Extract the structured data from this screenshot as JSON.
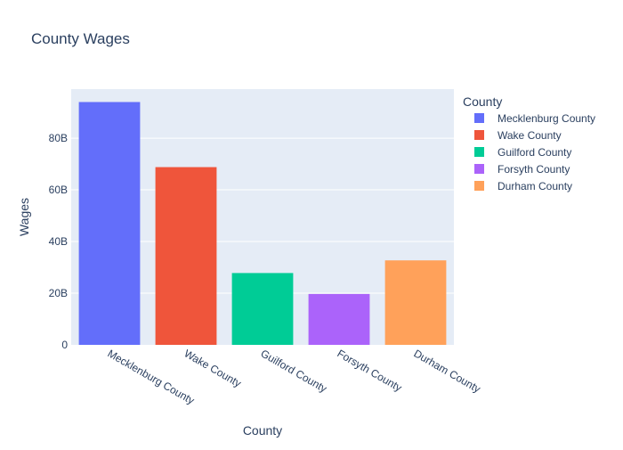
{
  "chart_data": {
    "type": "bar",
    "title": "County Wages",
    "xlabel": "County",
    "ylabel": "Wages",
    "categories": [
      "Mecklenburg County",
      "Wake County",
      "Guilford County",
      "Forsyth County",
      "Durham County"
    ],
    "values": [
      94000000000,
      68800000000,
      27800000000,
      19700000000,
      32700000000
    ],
    "colors": [
      "#636efa",
      "#ef553b",
      "#00cc96",
      "#ab63fa",
      "#ffa15a"
    ],
    "ylim": [
      0,
      99000000000
    ],
    "yticks": [
      0,
      20000000000,
      40000000000,
      60000000000,
      80000000000
    ],
    "ytick_labels": [
      "0",
      "20B",
      "40B",
      "60B",
      "80B"
    ],
    "grid": true,
    "plot_bgcolor": "#e5ecf6",
    "legend": {
      "title": "County",
      "position": "top-right",
      "entries": [
        "Mecklenburg County",
        "Wake County",
        "Guilford County",
        "Forsyth County",
        "Durham County"
      ]
    }
  }
}
